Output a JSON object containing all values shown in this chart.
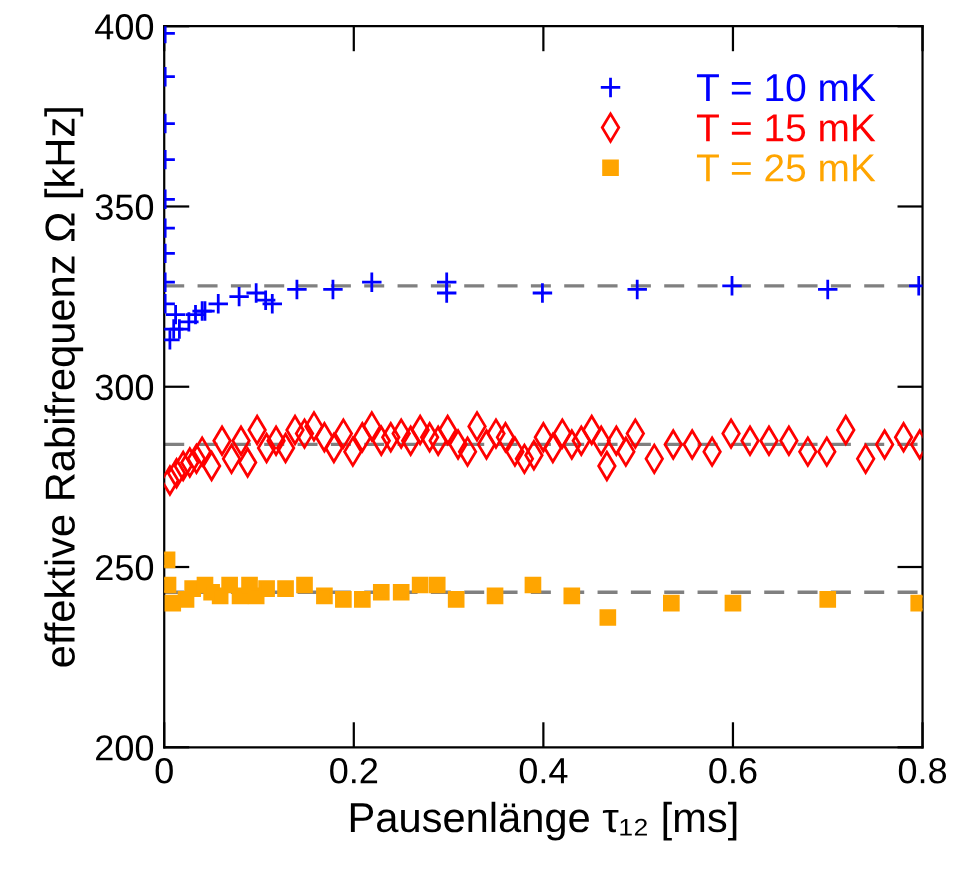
{
  "chart_data": {
    "type": "scatter",
    "xlabel": "Pausenlänge τ₁₂ [ms]",
    "ylabel": "effektive Rabifrequenz Ω [kHz]",
    "xlim": [
      0,
      0.8
    ],
    "xticks": [
      0,
      0.2,
      0.4,
      0.6,
      0.8
    ],
    "ylim": [
      200,
      400
    ],
    "yticks": [
      200,
      250,
      300,
      350,
      400
    ],
    "grid": false,
    "legend": "top right",
    "ref_lines": [
      {
        "axis": "y",
        "value": 328,
        "color": "#808080",
        "line_style": "dashed"
      },
      {
        "axis": "y",
        "value": 284,
        "color": "#808080",
        "line_style": "dashed"
      },
      {
        "axis": "y",
        "value": 243,
        "color": "#808080",
        "line_style": "dashed"
      }
    ],
    "series": [
      {
        "name": "T = 10 mK",
        "color": "#0000ff",
        "marker": "cross",
        "x": [
          0.001,
          0.001,
          0.001,
          0.001,
          0.001,
          0.001,
          0.001,
          0.001,
          0.001,
          0.006,
          0.01,
          0.012,
          0.016,
          0.026,
          0.03,
          0.033,
          0.04,
          0.043,
          0.057,
          0.079,
          0.097,
          0.107,
          0.114,
          0.14,
          0.178,
          0.219,
          0.298,
          0.298,
          0.399,
          0.499,
          0.599,
          0.7,
          0.796
        ],
        "values": [
          398,
          386,
          373,
          363,
          352,
          344,
          337,
          329,
          323,
          313,
          316,
          320,
          316,
          318,
          null,
          320,
          321,
          321,
          323,
          325,
          326,
          324,
          323,
          327,
          327,
          329,
          329,
          326,
          326,
          327,
          328,
          327,
          328
        ]
      },
      {
        "name": "T = 15 mK",
        "color": "#ff0000",
        "marker": "diamond",
        "x": [
          0.006,
          0.013,
          0.02,
          0.027,
          0.034,
          0.04,
          0.05,
          0.061,
          0.071,
          0.081,
          0.088,
          0.098,
          0.108,
          0.118,
          0.128,
          0.138,
          0.148,
          0.158,
          0.169,
          0.179,
          0.189,
          0.199,
          0.209,
          0.219,
          0.229,
          0.239,
          0.25,
          0.26,
          0.27,
          0.28,
          0.289,
          0.299,
          0.31,
          0.32,
          0.33,
          0.34,
          0.35,
          0.36,
          0.37,
          0.38,
          0.39,
          0.4,
          0.41,
          0.42,
          0.43,
          0.44,
          0.451,
          0.461,
          0.467,
          0.477,
          0.487,
          0.497,
          0.517,
          0.537,
          0.557,
          0.578,
          0.598,
          0.618,
          0.638,
          0.659,
          0.679,
          0.699,
          0.719,
          0.74,
          0.76,
          0.78,
          0.797
        ],
        "values": [
          274,
          276,
          278,
          279,
          280,
          282,
          278,
          285,
          280,
          285,
          279,
          288,
          283,
          285,
          283,
          288,
          287,
          289,
          286,
          283,
          287,
          282,
          286,
          289,
          285,
          286,
          287,
          285,
          288,
          286,
          285,
          288,
          284,
          282,
          289,
          284,
          287,
          286,
          282,
          280,
          281,
          286,
          283,
          287,
          284,
          285,
          288,
          285,
          278,
          285,
          282,
          287,
          280,
          284,
          284,
          282,
          287,
          285,
          285,
          285,
          282,
          282,
          288,
          280,
          284,
          286,
          284
        ]
      },
      {
        "name": "T = 25 mK",
        "color": "#ffa500",
        "marker": "square",
        "x": [
          0.003,
          0.004,
          0.009,
          0.023,
          0.03,
          0.043,
          0.05,
          0.059,
          0.069,
          0.08,
          0.09,
          0.097,
          0.108,
          0.128,
          0.148,
          0.169,
          0.189,
          0.209,
          0.229,
          0.25,
          0.27,
          0.288,
          0.308,
          0.349,
          0.389,
          0.43,
          0.468,
          0.535,
          0.6,
          0.7,
          0.796
        ],
        "values": [
          252,
          245,
          240,
          241,
          244,
          245,
          243,
          242,
          245,
          242,
          245,
          242,
          244,
          244,
          245,
          242,
          241,
          241,
          243,
          243,
          245,
          245,
          241,
          242,
          245,
          242,
          236,
          240,
          240,
          241,
          240
        ]
      }
    ]
  }
}
